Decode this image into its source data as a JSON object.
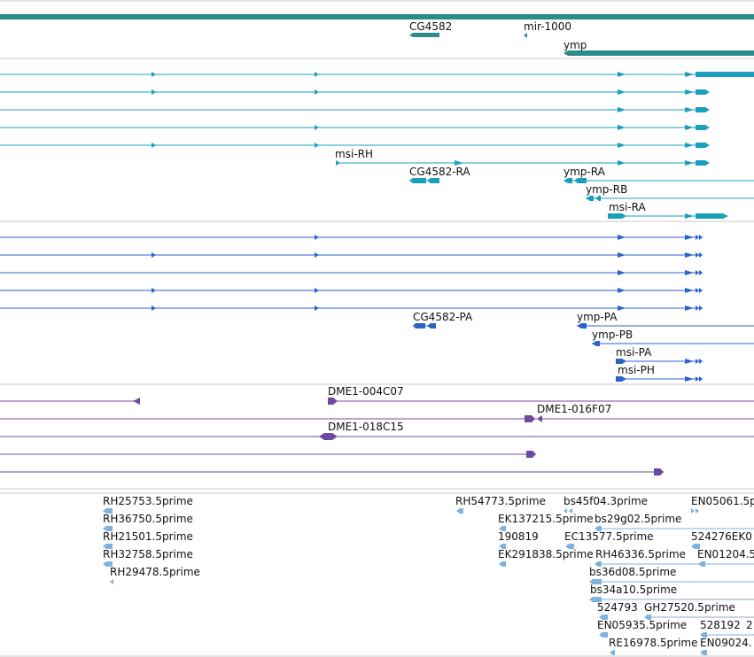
{
  "colors": {
    "gene": "#2e8b8b",
    "transcript": "#1a9fbf",
    "protein": "#2a63c9",
    "clone": "#6c4aa0",
    "est": "#7fb2dc",
    "separator": "#c8c8c8"
  },
  "gene_track": {
    "labels": [
      {
        "id": "cg4582",
        "text": "CG4582"
      },
      {
        "id": "mir1000",
        "text": "mir-1000"
      },
      {
        "id": "ymp",
        "text": "ymp"
      }
    ]
  },
  "transcript_track": {
    "labels": [
      {
        "id": "msi-rh",
        "text": "msi-RH"
      },
      {
        "id": "cg4582-ra",
        "text": "CG4582-RA"
      },
      {
        "id": "ymp-ra",
        "text": "ymp-RA"
      },
      {
        "id": "ymp-rb",
        "text": "ymp-RB"
      },
      {
        "id": "msi-ra",
        "text": "msi-RA"
      }
    ]
  },
  "protein_track": {
    "labels": [
      {
        "id": "cg4582-pa",
        "text": "CG4582-PA"
      },
      {
        "id": "ymp-pa",
        "text": "ymp-PA"
      },
      {
        "id": "ymp-pb",
        "text": "ymp-PB"
      },
      {
        "id": "msi-pa",
        "text": "msi-PA"
      },
      {
        "id": "msi-ph",
        "text": "msi-PH"
      }
    ]
  },
  "clone_track": {
    "labels": [
      {
        "id": "dme1-004c07",
        "text": "DME1-004C07"
      },
      {
        "id": "dme1-016f07",
        "text": "DME1-016F07"
      },
      {
        "id": "dme1-018c15",
        "text": "DME1-018C15"
      }
    ]
  },
  "est_track": {
    "labels": [
      {
        "id": "rh25753",
        "text": "RH25753.5prime"
      },
      {
        "id": "rh36750",
        "text": "RH36750.5prime"
      },
      {
        "id": "rh21501",
        "text": "RH21501.5prime"
      },
      {
        "id": "rh32758",
        "text": "RH32758.5prime"
      },
      {
        "id": "rh29478",
        "text": "RH29478.5prime"
      },
      {
        "id": "rh54773",
        "text": "RH54773.5prime"
      },
      {
        "id": "ek137215",
        "text": "EK137215.5prime"
      },
      {
        "id": "190819",
        "text": "190819"
      },
      {
        "id": "ek291838",
        "text": "EK291838.5prime"
      },
      {
        "id": "bs45f04",
        "text": "bs45f04.3prime"
      },
      {
        "id": "bs29g02",
        "text": "bs29g02.5prime"
      },
      {
        "id": "ec13577",
        "text": "EC13577.5prime"
      },
      {
        "id": "rh46336",
        "text": "RH46336.5prime"
      },
      {
        "id": "bs36d08",
        "text": "bs36d08.5prime"
      },
      {
        "id": "bs34a10",
        "text": "bs34a10.5prime"
      },
      {
        "id": "524793",
        "text": "524793"
      },
      {
        "id": "gh27520",
        "text": "GH27520.5prime"
      },
      {
        "id": "en05935",
        "text": "EN05935.5prime"
      },
      {
        "id": "528192",
        "text": "528192"
      },
      {
        "id": "2",
        "text": "2"
      },
      {
        "id": "re16978",
        "text": "RE16978.5prime"
      },
      {
        "id": "en09024",
        "text": "EN09024."
      },
      {
        "id": "en05061",
        "text": "EN05061.5p"
      },
      {
        "id": "524276",
        "text": "524276EK0"
      },
      {
        "id": "en01204",
        "text": "EN01204.5"
      }
    ]
  }
}
